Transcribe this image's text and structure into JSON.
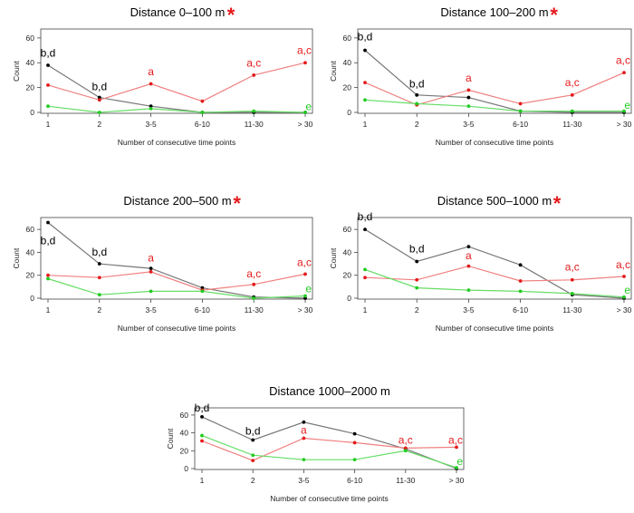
{
  "chart_data": [
    {
      "type": "line",
      "title": "Distance 0–100 m",
      "significance_marker": "*",
      "categories": [
        "1",
        "2",
        "3-5",
        "6-10",
        "11-30",
        "> 30"
      ],
      "xlabel": "Number of consecutive time points",
      "ylabel": "Count",
      "ylim": [
        0,
        65
      ],
      "yticks": [
        0,
        20,
        40,
        60
      ],
      "series": [
        {
          "name": "black",
          "color": "#000000",
          "line_color": "#777777",
          "values": [
            38,
            12,
            5,
            0,
            0,
            0
          ]
        },
        {
          "name": "red",
          "color": "#e41a1c",
          "line_color": "#f08080",
          "values": [
            22,
            10,
            23,
            9,
            30,
            40
          ]
        },
        {
          "name": "green",
          "color": "#22cc22",
          "line_color": "#66dd66",
          "values": [
            5,
            0,
            3,
            0,
            1,
            0
          ]
        }
      ],
      "annotations": [
        {
          "text": "b,d",
          "category": "1",
          "y": 45,
          "color": "#000000"
        },
        {
          "text": "b,d",
          "category": "2",
          "y": 18,
          "color": "#000000"
        },
        {
          "text": "a",
          "category": "3-5",
          "y": 30,
          "color": "#e41a1c"
        },
        {
          "text": "a,c",
          "category": "11-30",
          "y": 37,
          "color": "#e41a1c"
        },
        {
          "text": "a,c",
          "category": "> 30",
          "y": 47,
          "color": "#e41a1c"
        },
        {
          "text": "e",
          "category": "> 30",
          "y": 2,
          "color": "#22cc22"
        }
      ]
    },
    {
      "type": "line",
      "title": "Distance 100–200 m",
      "significance_marker": "*",
      "categories": [
        "1",
        "2",
        "3-5",
        "6-10",
        "11-30",
        "> 30"
      ],
      "xlabel": "Number of consecutive time points",
      "ylabel": "Count",
      "ylim": [
        0,
        65
      ],
      "yticks": [
        0,
        20,
        40,
        60
      ],
      "series": [
        {
          "name": "black",
          "color": "#000000",
          "line_color": "#777777",
          "values": [
            50,
            14,
            12,
            1,
            0,
            0
          ]
        },
        {
          "name": "red",
          "color": "#e41a1c",
          "line_color": "#f08080",
          "values": [
            24,
            6,
            18,
            7,
            14,
            32
          ]
        },
        {
          "name": "green",
          "color": "#22cc22",
          "line_color": "#66dd66",
          "values": [
            10,
            7,
            5,
            1,
            1,
            1
          ]
        }
      ],
      "annotations": [
        {
          "text": "b,d",
          "category": "1",
          "y": 58,
          "color": "#000000"
        },
        {
          "text": "b,d",
          "category": "2",
          "y": 20,
          "color": "#000000"
        },
        {
          "text": "a",
          "category": "3-5",
          "y": 25,
          "color": "#e41a1c"
        },
        {
          "text": "a,c",
          "category": "11-30",
          "y": 21,
          "color": "#e41a1c"
        },
        {
          "text": "a,c",
          "category": "> 30",
          "y": 39,
          "color": "#e41a1c"
        },
        {
          "text": "e",
          "category": "> 30",
          "y": 3,
          "color": "#22cc22"
        }
      ]
    },
    {
      "type": "line",
      "title": "Distance 200–500 m",
      "significance_marker": "*",
      "categories": [
        "1",
        "2",
        "3-5",
        "6-10",
        "11-30",
        "> 30"
      ],
      "xlabel": "Number of consecutive time points",
      "ylabel": "Count",
      "ylim": [
        0,
        68
      ],
      "yticks": [
        0,
        20,
        40,
        60
      ],
      "series": [
        {
          "name": "black",
          "color": "#000000",
          "line_color": "#777777",
          "values": [
            66,
            30,
            26,
            9,
            1,
            0
          ]
        },
        {
          "name": "red",
          "color": "#e41a1c",
          "line_color": "#f08080",
          "values": [
            20,
            18,
            23,
            7,
            12,
            21
          ]
        },
        {
          "name": "green",
          "color": "#22cc22",
          "line_color": "#66dd66",
          "values": [
            17,
            3,
            6,
            6,
            0,
            2
          ]
        }
      ],
      "annotations": [
        {
          "text": "b,d",
          "category": "1",
          "y": 47,
          "color": "#000000"
        },
        {
          "text": "b,d",
          "category": "2",
          "y": 37,
          "color": "#000000"
        },
        {
          "text": "a",
          "category": "3-5",
          "y": 32,
          "color": "#e41a1c"
        },
        {
          "text": "a,c",
          "category": "11-30",
          "y": 18,
          "color": "#e41a1c"
        },
        {
          "text": "a,c",
          "category": "> 30",
          "y": 28,
          "color": "#e41a1c"
        },
        {
          "text": "e",
          "category": "> 30",
          "y": 5,
          "color": "#22cc22"
        }
      ]
    },
    {
      "type": "line",
      "title": "Distance 500–1000 m",
      "significance_marker": "*",
      "categories": [
        "1",
        "2",
        "3-5",
        "6-10",
        "11-30",
        "> 30"
      ],
      "xlabel": "Number of consecutive time points",
      "ylabel": "Count",
      "ylim": [
        0,
        68
      ],
      "yticks": [
        0,
        20,
        40,
        60
      ],
      "series": [
        {
          "name": "black",
          "color": "#000000",
          "line_color": "#777777",
          "values": [
            60,
            32,
            45,
            29,
            3,
            0
          ]
        },
        {
          "name": "red",
          "color": "#e41a1c",
          "line_color": "#f08080",
          "values": [
            18,
            16,
            28,
            15,
            16,
            19
          ]
        },
        {
          "name": "green",
          "color": "#22cc22",
          "line_color": "#66dd66",
          "values": [
            25,
            9,
            7,
            6,
            4,
            1
          ]
        }
      ],
      "annotations": [
        {
          "text": "b,d",
          "category": "1",
          "y": 68,
          "color": "#000000"
        },
        {
          "text": "b,d",
          "category": "2",
          "y": 40,
          "color": "#000000"
        },
        {
          "text": "a",
          "category": "3-5",
          "y": 34,
          "color": "#e41a1c"
        },
        {
          "text": "a,c",
          "category": "11-30",
          "y": 24,
          "color": "#e41a1c"
        },
        {
          "text": "a,c",
          "category": "> 30",
          "y": 26,
          "color": "#e41a1c"
        },
        {
          "text": "e",
          "category": "> 30",
          "y": 4,
          "color": "#22cc22"
        }
      ]
    },
    {
      "type": "line",
      "title": "Distance 1000–2000 m",
      "significance_marker": "",
      "categories": [
        "1",
        "2",
        "3-5",
        "6-10",
        "11-30",
        "> 30"
      ],
      "xlabel": "Number of consecutive time points",
      "ylabel": "Count",
      "ylim": [
        0,
        65
      ],
      "yticks": [
        0,
        20,
        40,
        60
      ],
      "series": [
        {
          "name": "black",
          "color": "#000000",
          "line_color": "#777777",
          "values": [
            58,
            32,
            52,
            39,
            22,
            0
          ]
        },
        {
          "name": "red",
          "color": "#e41a1c",
          "line_color": "#f08080",
          "values": [
            31,
            9,
            34,
            29,
            23,
            24
          ]
        },
        {
          "name": "green",
          "color": "#22cc22",
          "line_color": "#66dd66",
          "values": [
            37,
            15,
            10,
            10,
            20,
            1
          ]
        }
      ],
      "annotations": [
        {
          "text": "b,d",
          "category": "1",
          "y": 64,
          "color": "#000000"
        },
        {
          "text": "b,d",
          "category": "2",
          "y": 38,
          "color": "#000000"
        },
        {
          "text": "a",
          "category": "3-5",
          "y": 39,
          "color": "#e41a1c"
        },
        {
          "text": "a,c",
          "category": "11-30",
          "y": 28,
          "color": "#e41a1c"
        },
        {
          "text": "a,c",
          "category": "> 30",
          "y": 28,
          "color": "#e41a1c"
        },
        {
          "text": "e",
          "category": "> 30",
          "y": 4,
          "color": "#22cc22"
        }
      ]
    }
  ]
}
